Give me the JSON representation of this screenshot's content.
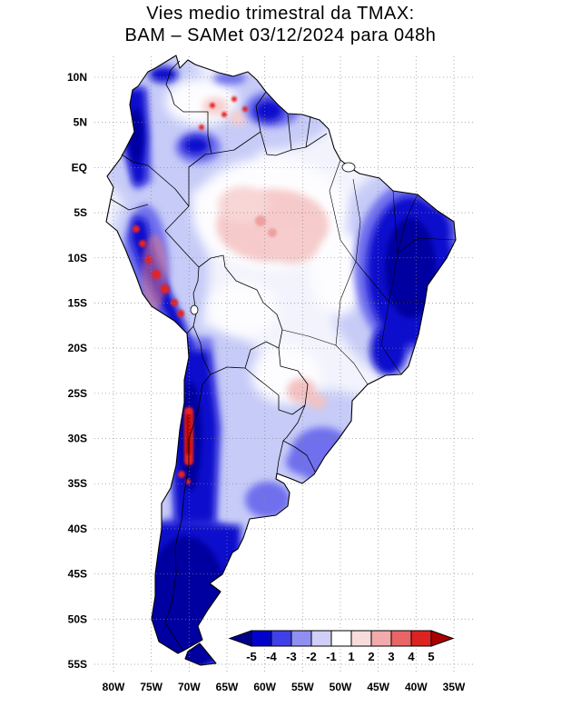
{
  "title": {
    "line1": "Vies medio trimestral da TMAX:",
    "line2": "BAM – SAMet 03/12/2024  para 048h"
  },
  "axes": {
    "lat_labels": [
      "10N",
      "5N",
      "EQ",
      "5S",
      "10S",
      "15S",
      "20S",
      "25S",
      "30S",
      "35S",
      "40S",
      "45S",
      "50S",
      "55S"
    ],
    "lon_labels": [
      "80W",
      "75W",
      "70W",
      "65W",
      "60W",
      "55W",
      "50W",
      "45W",
      "40W",
      "35W"
    ]
  },
  "colorbar": {
    "labels": [
      "-5",
      "-4",
      "-3",
      "-2",
      "-1",
      "1",
      "2",
      "3",
      "4",
      "5"
    ],
    "box_colors": [
      "#0202cd",
      "#4040e8",
      "#8f8ff2",
      "#cfcff8",
      "#ffffff",
      "#f8dcdc",
      "#f2aaaa",
      "#e86666",
      "#dd2222"
    ],
    "arrow_left_color": "#00008b",
    "arrow_right_color": "#aa0000"
  },
  "map": {
    "region": "South America",
    "ocean_color": "#ffffff",
    "land_base_color": "#f2f3fc",
    "palette": {
      "deep_blue": "#0000a0",
      "dark_blue": "#0707cd",
      "medium_blue": "#7070ee",
      "light_blue": "#c6cbf7",
      "neutral": "#ffffff",
      "pink": "#f6caca",
      "red": "#e62020"
    }
  }
}
